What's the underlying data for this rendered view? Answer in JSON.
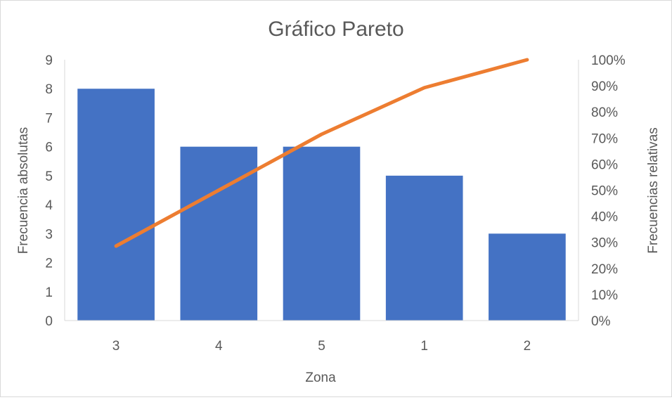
{
  "chart_data": {
    "type": "bar",
    "title": "Gráfico Pareto",
    "xlabel": "Zona",
    "ylabel": "Frecuencia absolutas",
    "y2label": "Frecuencias relativas",
    "categories": [
      "3",
      "4",
      "5",
      "1",
      "2"
    ],
    "series": [
      {
        "values": [
          8,
          6,
          6,
          5,
          3
        ],
        "axis": "left",
        "kind": "bar",
        "color": "#4472C4"
      },
      {
        "values": [
          0.2857,
          0.5,
          0.7143,
          0.8929,
          1.0
        ],
        "axis": "right",
        "kind": "line",
        "color": "#ED7D31"
      }
    ],
    "ylim": [
      0,
      9
    ],
    "y2lim": [
      0,
      1
    ],
    "yticks": [
      "0",
      "1",
      "2",
      "3",
      "4",
      "5",
      "6",
      "7",
      "8",
      "9"
    ],
    "y2ticks": [
      "0%",
      "10%",
      "20%",
      "30%",
      "40%",
      "50%",
      "60%",
      "70%",
      "80%",
      "90%",
      "100%"
    ],
    "grid": false,
    "legend": "none"
  }
}
